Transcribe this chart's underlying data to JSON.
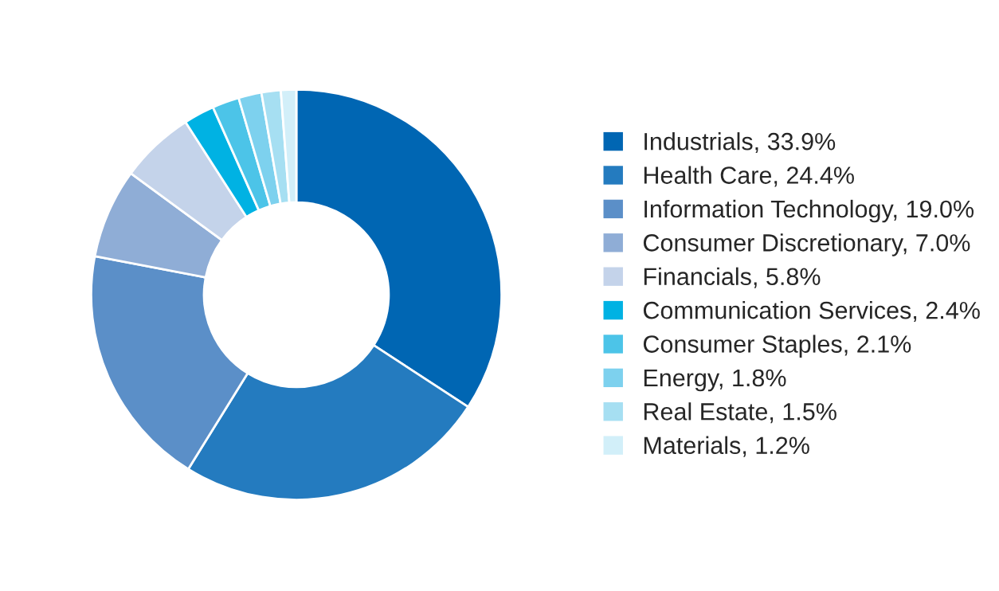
{
  "chart_data": {
    "type": "donut",
    "categories": [
      "Industrials",
      "Health Care",
      "Information Technology",
      "Consumer Discretionary",
      "Financials",
      "Communication Services",
      "Consumer Staples",
      "Energy",
      "Real Estate",
      "Materials"
    ],
    "values": [
      33.9,
      24.4,
      19.0,
      7.0,
      5.8,
      2.4,
      2.1,
      1.8,
      1.5,
      1.2
    ],
    "value_labels": [
      "33.9%",
      "24.4%",
      "19.0%",
      "7.0%",
      "5.8%",
      "2.4%",
      "2.1%",
      "1.8%",
      "1.5%",
      "1.2%"
    ],
    "colors": [
      "#0066b3",
      "#247bbf",
      "#5b8fc8",
      "#8fadd6",
      "#c4d3ea",
      "#00b2e3",
      "#4cc4e8",
      "#7dd1ee",
      "#a6dff2",
      "#d2eff9"
    ],
    "legend": "right"
  }
}
